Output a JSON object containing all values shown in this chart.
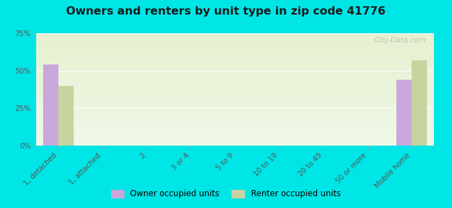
{
  "title": "Owners and renters by unit type in zip code 41776",
  "categories": [
    "1, detached",
    "1, attached",
    "2",
    "3 or 4",
    "5 to 9",
    "10 to 19",
    "20 to 49",
    "50 or more",
    "Mobile home"
  ],
  "owner_values": [
    54,
    0,
    0,
    0,
    0,
    0,
    0,
    0,
    44
  ],
  "renter_values": [
    40,
    0,
    0,
    0,
    0,
    0,
    0,
    0,
    57
  ],
  "owner_color": "#c9a8dc",
  "renter_color": "#c8d4a0",
  "background_color": "#00e5e5",
  "grad_top": "#f0f8e8",
  "grad_bottom": "#e8f0d0",
  "ylim": [
    0,
    75
  ],
  "yticks": [
    0,
    25,
    50,
    75
  ],
  "ytick_labels": [
    "0%",
    "25%",
    "50%",
    "75%"
  ],
  "bar_width": 0.35,
  "legend_owner": "Owner occupied units",
  "legend_renter": "Renter occupied units",
  "watermark": "City-Data.com"
}
